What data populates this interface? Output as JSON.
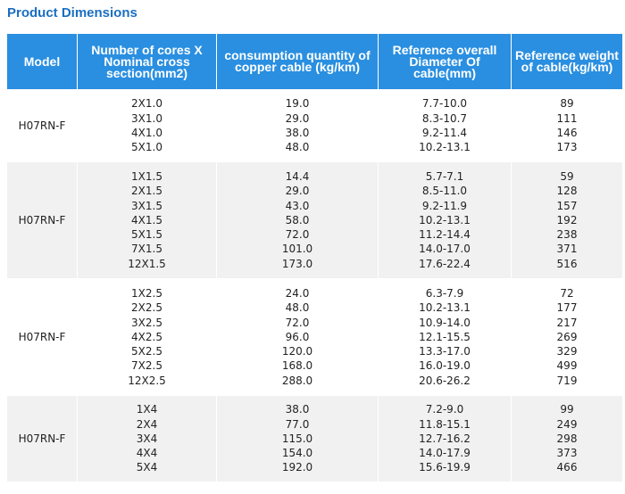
{
  "title": "Product Dimensions",
  "headers": [
    "Model",
    "Number of cores X Nominal cross section(mm2)",
    "consumption quantity of copper cable (kg/km)",
    "Reference overall Diameter Of cable(mm)",
    "Reference weight of cable(kg/km)"
  ],
  "groups": [
    {
      "model": "H07RN-F",
      "cores": [
        "2X1.0",
        "3X1.0",
        "4X1.0",
        "5X1.0"
      ],
      "copper": [
        "19.0",
        "29.0",
        "38.0",
        "48.0"
      ],
      "diameter": [
        "7.7-10.0",
        "8.3-10.7",
        "9.2-11.4",
        "10.2-13.1"
      ],
      "weight": [
        "89",
        "111",
        "146",
        "173"
      ]
    },
    {
      "model": "H07RN-F",
      "cores": [
        "1X1.5",
        "2X1.5",
        "3X1.5",
        "4X1.5",
        "5X1.5",
        "7X1.5",
        "12X1.5"
      ],
      "copper": [
        "14.4",
        "29.0",
        "43.0",
        "58.0",
        "72.0",
        "101.0",
        "173.0"
      ],
      "diameter": [
        "5.7-7.1",
        "8.5-11.0",
        "9.2-11.9",
        "10.2-13.1",
        "11.2-14.4",
        "14.0-17.0",
        "17.6-22.4"
      ],
      "weight": [
        "59",
        "128",
        "157",
        "192",
        "238",
        "371",
        "516"
      ]
    },
    {
      "model": "H07RN-F",
      "cores": [
        "1X2.5",
        "2X2.5",
        "3X2.5",
        "4X2.5",
        "5X2.5",
        "7X2.5",
        "12X2.5"
      ],
      "copper": [
        "24.0",
        "48.0",
        "72.0",
        "96.0",
        "120.0",
        "168.0",
        "288.0"
      ],
      "diameter": [
        "6.3-7.9",
        "10.2-13.1",
        "10.9-14.0",
        "12.1-15.5",
        "13.3-17.0",
        "16.0-19.0",
        "20.6-26.2"
      ],
      "weight": [
        "72",
        "177",
        "217",
        "269",
        "329",
        "499",
        "719"
      ]
    },
    {
      "model": "H07RN-F",
      "cores": [
        "1X4",
        "2X4",
        "3X4",
        "4X4",
        "5X4"
      ],
      "copper": [
        "38.0",
        "77.0",
        "115.0",
        "154.0",
        "192.0"
      ],
      "diameter": [
        "7.2-9.0",
        "11.8-15.1",
        "12.7-16.2",
        "14.0-17.9",
        "15.6-19.9"
      ],
      "weight": [
        "99",
        "249",
        "298",
        "373",
        "466"
      ]
    }
  ]
}
